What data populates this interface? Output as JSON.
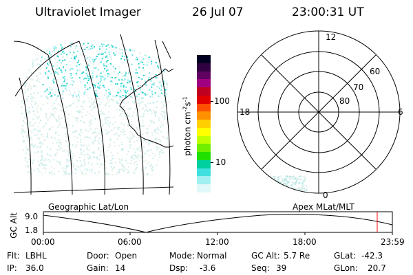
{
  "header": {
    "instrument": "Ultraviolet Imager",
    "date": "26 Jul 07",
    "time": "23:00:31 UT"
  },
  "colorbar": {
    "unit_label": "photon cm",
    "unit_exp1": "-2",
    "unit_s": "s",
    "unit_exp2": "-1",
    "ticks": [
      "100",
      "10"
    ],
    "colors": [
      "#000020",
      "#300040",
      "#600060",
      "#a00080",
      "#c00020",
      "#e00000",
      "#ff5000",
      "#ff9000",
      "#ffd000",
      "#ffff00",
      "#c0ff00",
      "#70f000",
      "#20e000",
      "#00d0a0",
      "#40e0e0",
      "#a0f0f0",
      "#e0f8f8"
    ]
  },
  "polar_plot": {
    "mlt_labels": [
      "12",
      "18",
      "6",
      "0"
    ],
    "lat_labels": [
      "60",
      "70",
      "80"
    ]
  },
  "timeline": {
    "left_label": "Geographic Lat/Lon",
    "right_label": "Apex MLat/MLT",
    "axis_label": "GC Alt",
    "y_ticks": [
      "9.0",
      "1.8"
    ],
    "x_ticks": [
      "00:00",
      "06:00",
      "12:00",
      "18:00",
      "23:59"
    ],
    "current_time_marker_color": "#ff0000"
  },
  "status": {
    "filter_label": "Flt:",
    "filter_value": "LBHL",
    "ip_label": "IP:",
    "ip_value": "36.0",
    "door_label": "Door:",
    "door_value": "Open",
    "gain_label": "Gain:",
    "gain_value": "14",
    "mode_label": "Mode:",
    "mode_value": "Normal",
    "dsp_label": "Dsp:",
    "dsp_value": "-3.6",
    "gcalt_label": "GC Alt:",
    "gcalt_value": "5.7 Re",
    "seq_label": "Seq:",
    "seq_value": "39",
    "glat_label": "GLat:",
    "glat_value": "-42.3",
    "glon_label": "GLon:",
    "glon_value": "20.7"
  }
}
